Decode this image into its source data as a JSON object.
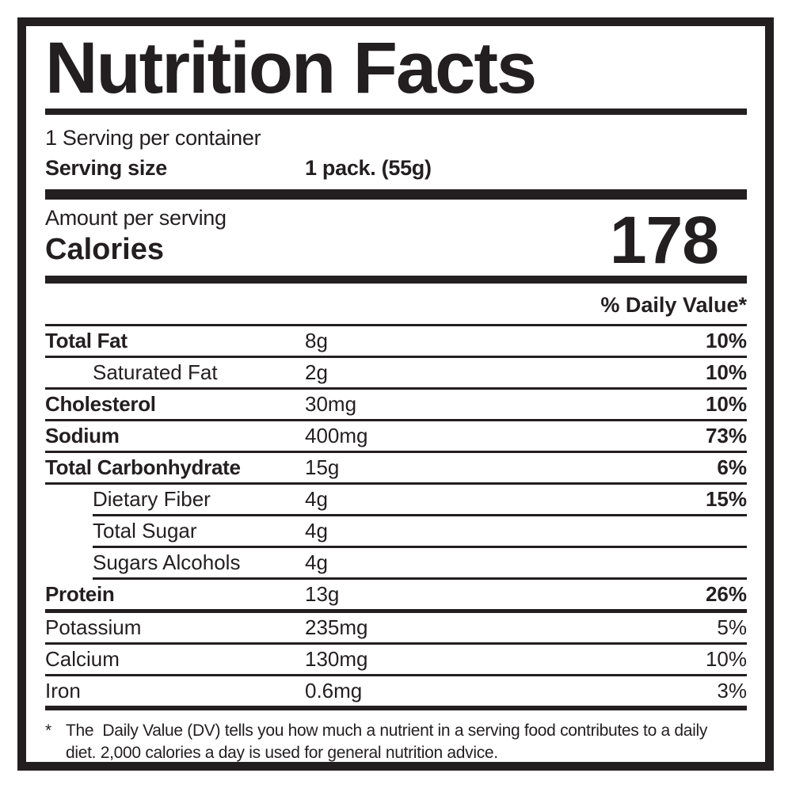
{
  "label": {
    "title": "Nutrition Facts",
    "servings_per_container": "1 Serving per container",
    "serving_size_label": "Serving size",
    "serving_size_value": "1 pack. (55g)",
    "amount_per_serving": "Amount per serving",
    "calories_label": "Calories",
    "calories_value": "178",
    "daily_value_header": "% Daily Value*",
    "rows": [
      {
        "label": "Total Fat",
        "amount": "8g",
        "dv": "10%"
      },
      {
        "label": "Saturated Fat",
        "amount": "2g",
        "dv": "10%"
      },
      {
        "label": "Cholesterol",
        "amount": "30mg",
        "dv": "10%"
      },
      {
        "label": "Sodium",
        "amount": "400mg",
        "dv": "73%"
      },
      {
        "label": "Total Carbonhydrate",
        "amount": "15g",
        "dv": "6%"
      },
      {
        "label": "Dietary Fiber",
        "amount": "4g",
        "dv": "15%"
      },
      {
        "label": "Total Sugar",
        "amount": "4g",
        "dv": ""
      },
      {
        "label": "Sugars Alcohols",
        "amount": "4g",
        "dv": ""
      },
      {
        "label": "Protein",
        "amount": "13g",
        "dv": "26%"
      },
      {
        "label": "Potassium",
        "amount": "235mg",
        "dv": "5%"
      },
      {
        "label": "Calcium",
        "amount": "130mg",
        "dv": "10%"
      },
      {
        "label": "Iron",
        "amount": "0.6mg",
        "dv": "3%"
      }
    ],
    "footnote_marker": "*",
    "footnote": "The  Daily Value (DV) tells you how much a nutrient in a serving food contributes to a daily\ndiet. 2,000 calories a day is used for general nutrition advice.",
    "colors": {
      "ink": "#231f20",
      "background": "#ffffff"
    }
  }
}
